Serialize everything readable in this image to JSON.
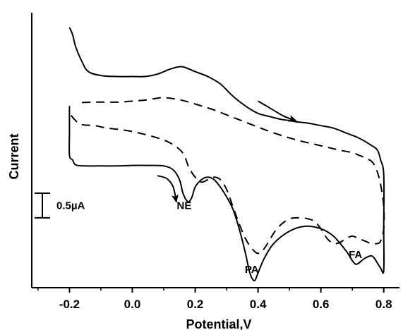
{
  "chart_data": {
    "type": "line",
    "title": "",
    "xlabel": "Potential,V",
    "ylabel": "Current",
    "xlim": [
      -0.32,
      0.85
    ],
    "ylim": [
      -3.2,
      2.4
    ],
    "x_ticks": [
      -0.2,
      0.0,
      0.2,
      0.4,
      0.6,
      0.8
    ],
    "x_tick_labels": [
      "-0.2",
      "0.0",
      "0.2",
      "0.4",
      "0.6",
      "0.8"
    ],
    "scale_bar": {
      "label": "0.5µA",
      "value": 0.5
    },
    "annotations": [
      {
        "text": "NE",
        "x": 0.165,
        "y": -1.6
      },
      {
        "text": "PA",
        "x": 0.38,
        "y": -2.9
      },
      {
        "text": "FA",
        "x": 0.71,
        "y": -2.6
      }
    ],
    "series": [
      {
        "style": "solid",
        "color": "#000000",
        "x": [
          0.52,
          0.48,
          0.44,
          0.4,
          0.36,
          0.32,
          0.28,
          0.24,
          0.2,
          0.17,
          0.15,
          0.12,
          0.08,
          0.04,
          0.0,
          -0.05,
          -0.1,
          -0.14,
          -0.16,
          -0.18,
          -0.19,
          -0.2
        ],
        "y": [
          0.2,
          0.22,
          0.28,
          0.35,
          0.5,
          0.7,
          0.95,
          1.1,
          1.2,
          1.28,
          1.3,
          1.25,
          1.15,
          1.1,
          1.1,
          1.1,
          1.12,
          1.2,
          1.4,
          1.7,
          1.95,
          2.1
        ]
      },
      {
        "style": "solid",
        "color": "#000000",
        "x": [
          -0.2,
          -0.2,
          -0.2,
          -0.19,
          -0.18,
          -0.15,
          -0.1,
          -0.05,
          0.0,
          0.05,
          0.1,
          0.13,
          0.15,
          0.16,
          0.17,
          0.18,
          0.19,
          0.2,
          0.22,
          0.24,
          0.26,
          0.28,
          0.3,
          0.32,
          0.34,
          0.36,
          0.37,
          0.38,
          0.39,
          0.4,
          0.42,
          0.45,
          0.5,
          0.55,
          0.6,
          0.64,
          0.68,
          0.7,
          0.71,
          0.72,
          0.74,
          0.76,
          0.77,
          0.78,
          0.79,
          0.8,
          0.8,
          0.8,
          0.79,
          0.78,
          0.76,
          0.72,
          0.68,
          0.64,
          0.6,
          0.56,
          0.52,
          0.5
        ],
        "y": [
          0.5,
          0.0,
          -0.5,
          -0.6,
          -0.7,
          -0.72,
          -0.72,
          -0.72,
          -0.71,
          -0.71,
          -0.72,
          -0.8,
          -1.0,
          -1.25,
          -1.4,
          -1.45,
          -1.35,
          -1.15,
          -1.0,
          -0.95,
          -1.0,
          -1.15,
          -1.35,
          -1.6,
          -2.0,
          -2.5,
          -2.8,
          -3.0,
          -3.05,
          -2.9,
          -2.6,
          -2.3,
          -2.05,
          -1.95,
          -2.0,
          -2.15,
          -2.45,
          -2.65,
          -2.72,
          -2.7,
          -2.6,
          -2.55,
          -2.6,
          -2.7,
          -2.8,
          -2.85,
          -2.0,
          -0.9,
          -0.6,
          -0.4,
          -0.3,
          -0.15,
          -0.05,
          0.05,
          0.1,
          0.15,
          0.18,
          0.2
        ]
      },
      {
        "style": "dashed",
        "color": "#000000",
        "x": [
          -0.16,
          -0.12,
          -0.08,
          -0.04,
          0.0,
          0.04,
          0.08,
          0.1,
          0.14,
          0.18,
          0.22,
          0.26,
          0.3,
          0.34,
          0.38,
          0.42,
          0.46,
          0.5,
          0.54,
          0.58,
          0.62,
          0.66,
          0.7,
          0.72,
          0.74,
          0.76,
          0.77,
          0.78,
          0.79,
          0.8,
          0.8,
          0.79,
          0.78,
          0.76,
          0.74,
          0.72,
          0.7,
          0.68,
          0.66,
          0.64,
          0.62,
          0.6,
          0.58,
          0.56,
          0.54,
          0.5,
          0.46,
          0.42,
          0.4,
          0.38,
          0.36,
          0.34,
          0.32,
          0.3,
          0.28,
          0.26,
          0.24,
          0.22,
          0.2,
          0.18,
          0.16,
          0.12,
          0.08,
          0.04,
          0.0,
          -0.04,
          -0.08,
          -0.12,
          -0.16,
          -0.18,
          -0.2
        ],
        "y": [
          0.57,
          0.58,
          0.58,
          0.58,
          0.6,
          0.62,
          0.66,
          0.67,
          0.64,
          0.58,
          0.5,
          0.42,
          0.32,
          0.22,
          0.12,
          0.02,
          -0.07,
          -0.15,
          -0.22,
          -0.28,
          -0.34,
          -0.4,
          -0.45,
          -0.5,
          -0.55,
          -0.62,
          -0.7,
          -0.85,
          -1.1,
          -1.55,
          -2.0,
          -2.25,
          -2.3,
          -2.3,
          -2.25,
          -2.2,
          -2.15,
          -2.2,
          -2.28,
          -2.3,
          -2.2,
          -2.0,
          -1.85,
          -1.8,
          -1.78,
          -1.8,
          -2.0,
          -2.4,
          -2.5,
          -2.4,
          -2.2,
          -1.9,
          -1.55,
          -1.2,
          -1.0,
          -0.95,
          -1.0,
          -1.05,
          -0.95,
          -0.75,
          -0.45,
          -0.25,
          -0.15,
          -0.08,
          -0.02,
          0.02,
          0.05,
          0.1,
          0.12,
          0.2,
          0.35
        ]
      }
    ],
    "scan_arrows": [
      {
        "x": [
          0.4,
          0.44,
          0.48,
          0.52
        ],
        "y": [
          0.6,
          0.45,
          0.3,
          0.2
        ],
        "direction": "right"
      },
      {
        "x": [
          0.08,
          0.11,
          0.13,
          0.14
        ],
        "y": [
          -0.92,
          -0.98,
          -1.15,
          -1.45
        ],
        "direction": "down"
      }
    ]
  }
}
